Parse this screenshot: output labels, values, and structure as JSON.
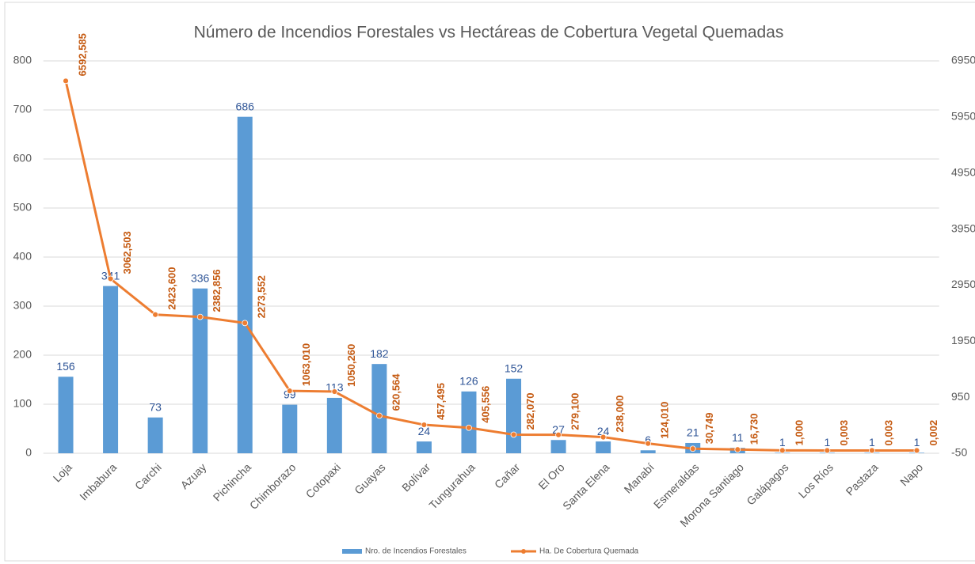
{
  "chart_data": {
    "type": "bar_line",
    "title": "Número de Incendios Forestales vs Hectáreas de Cobertura Vegetal Quemadas",
    "categories": [
      "Loja",
      "Imbabura",
      "Carchi",
      "Azuay",
      "Pichincha",
      "Chimborazo",
      "Cotopaxi",
      "Guayas",
      "Bolívar",
      "Tungurahua",
      "Cañar",
      "El Oro",
      "Santa Elena",
      "Manabí",
      "Esmeraldas",
      "Morona Santiago",
      "Galápagos",
      "Los Ríos",
      "Pastaza",
      "Napo"
    ],
    "series": [
      {
        "name": "Nro. de Incendios Forestales",
        "type": "bar",
        "color": "#5b9bd5",
        "axis": "y",
        "values": [
          156,
          341,
          73,
          336,
          686,
          99,
          113,
          182,
          24,
          126,
          152,
          27,
          24,
          6,
          21,
          11,
          1,
          1,
          1,
          1
        ]
      },
      {
        "name": "Ha. De Cobertura Quemada",
        "type": "line",
        "color": "#ed7d31",
        "axis": "y2",
        "values": [
          6592.585,
          3062.503,
          2423.6,
          2382.856,
          2273.552,
          1063.01,
          1050.26,
          620.564,
          457.495,
          405.556,
          282.07,
          279.1,
          238.0,
          124.01,
          30.749,
          16.73,
          1.0,
          0.003,
          0.003,
          0.002
        ],
        "value_labels": [
          "6592,585",
          "3062,503",
          "2423,600",
          "2382,856",
          "2273,552",
          "1063,010",
          "1050,260",
          "620,564",
          "457,495",
          "405,556",
          "282,070",
          "279,100",
          "238,000",
          "124,010",
          "30,749",
          "16,730",
          "1,000",
          "0,003",
          "0,003",
          "0,002"
        ]
      }
    ],
    "ylim": [
      0,
      800
    ],
    "yticks": [
      0,
      100,
      200,
      300,
      400,
      500,
      600,
      700,
      800
    ],
    "y2lim": [
      -50,
      6950
    ],
    "y2ticks": [
      -50,
      950,
      1950,
      2950,
      3950,
      4950,
      5950,
      6950
    ],
    "grid": true,
    "legend": "bottom"
  }
}
